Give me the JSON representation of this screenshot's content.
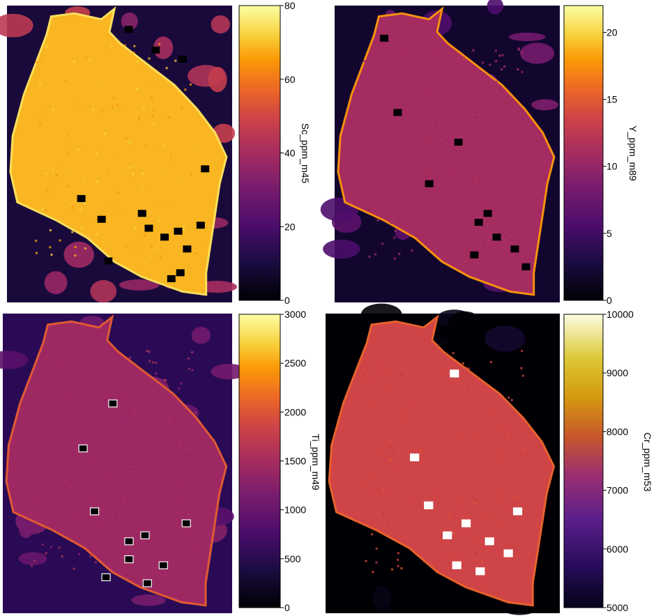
{
  "chart_data": [
    {
      "type": "heatmap",
      "title": "",
      "colorbar": {
        "label": "Sc_ppm_m45",
        "range": [
          0,
          80
        ],
        "ticks": [
          0,
          20,
          40,
          60,
          80
        ],
        "tick_labels": [
          "0",
          "20",
          "40",
          "60",
          "80"
        ]
      },
      "values": {
        "background_level": 0.5,
        "grain_level": 0.86,
        "rim_level": 0.93,
        "holes": [
          [
            0.08,
            0.54
          ],
          [
            0.15,
            0.66
          ],
          [
            0.18,
            0.78
          ],
          [
            0.55,
            0.88
          ],
          [
            0.65,
            0.33
          ],
          [
            0.72,
            0.42
          ],
          [
            0.7,
            0.6
          ],
          [
            0.78,
            0.7
          ],
          [
            0.82,
            0.8
          ],
          [
            0.9,
            0.77
          ],
          [
            0.92,
            0.73
          ],
          [
            0.86,
            0.45
          ],
          [
            0.76,
            0.76
          ],
          [
            0.75,
            0.63
          ],
          [
            0.74,
            0.86
          ]
        ]
      }
    },
    {
      "type": "heatmap",
      "title": "",
      "colorbar": {
        "label": "Y_ppm_m89",
        "range": [
          0,
          22
        ],
        "ticks": [
          0,
          5,
          10,
          15,
          20
        ],
        "tick_labels": [
          "0",
          "5",
          "10",
          "15",
          "20"
        ]
      },
      "values": {
        "background_level": 0.32,
        "grain_level": 0.5,
        "rim_level": 0.8,
        "holes": [
          [
            0.11,
            0.22
          ],
          [
            0.36,
            0.28
          ],
          [
            0.46,
            0.55
          ],
          [
            0.7,
            0.68
          ],
          [
            0.78,
            0.72
          ],
          [
            0.82,
            0.8
          ],
          [
            0.88,
            0.85
          ],
          [
            0.6,
            0.42
          ],
          [
            0.73,
            0.64
          ],
          [
            0.84,
            0.62
          ]
        ]
      }
    },
    {
      "type": "heatmap",
      "title": "",
      "colorbar": {
        "label": "Ti_ppm_m49",
        "range": [
          0,
          3000
        ],
        "ticks": [
          0,
          500,
          1000,
          1500,
          2000,
          2500,
          3000
        ],
        "tick_labels": [
          "0",
          "500",
          "1000",
          "1500",
          "2000",
          "2500",
          "3000"
        ]
      },
      "values": {
        "background_level": 0.35,
        "grain_level": 0.48,
        "rim_level": 0.68,
        "holes": [
          [
            0.3,
            0.48
          ],
          [
            0.45,
            0.35
          ],
          [
            0.7,
            0.8
          ],
          [
            0.74,
            0.62
          ],
          [
            0.82,
            0.55
          ],
          [
            0.9,
            0.63
          ],
          [
            0.76,
            0.55
          ],
          [
            0.66,
            0.4
          ],
          [
            0.84,
            0.7
          ],
          [
            0.88,
            0.45
          ]
        ]
      }
    },
    {
      "type": "heatmap",
      "title": "",
      "colorbar": {
        "label": "Cr_ppm_m53",
        "range": [
          5000,
          10000
        ],
        "ticks": [
          5000,
          6000,
          7000,
          8000,
          9000,
          10000
        ],
        "tick_labels": [
          "5000",
          "6000",
          "7000",
          "8000",
          "9000",
          "10000"
        ]
      },
      "values": {
        "background_level": 0.0,
        "grain_level": 0.62,
        "rim_level": 0.7,
        "holes": [
          [
            0.2,
            0.55
          ],
          [
            0.48,
            0.38
          ],
          [
            0.66,
            0.82
          ],
          [
            0.7,
            0.6
          ],
          [
            0.76,
            0.7
          ],
          [
            0.84,
            0.56
          ],
          [
            0.86,
            0.66
          ],
          [
            0.8,
            0.78
          ],
          [
            0.64,
            0.44
          ],
          [
            0.74,
            0.52
          ]
        ]
      }
    }
  ]
}
